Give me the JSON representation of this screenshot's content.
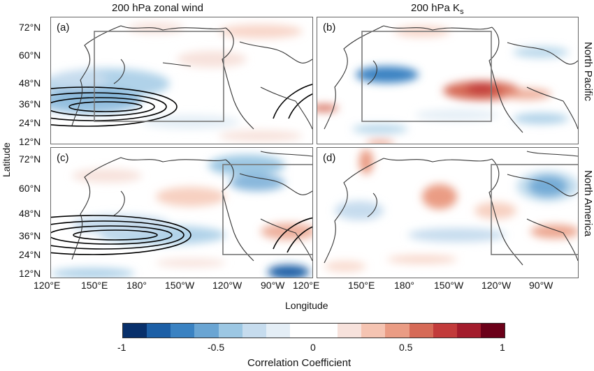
{
  "titles": {
    "left": "200 hPa zonal wind",
    "right_main": "200 hPa K",
    "right_sub": "s"
  },
  "ylabel": "Latitude",
  "xlabel": "Longitude",
  "row_labels": {
    "top": "North Pacific",
    "bottom": "North America"
  },
  "panel_labels": [
    "(a)",
    "(b)",
    "(c)",
    "(d)"
  ],
  "lat_ticks": [
    "72°N",
    "60°N",
    "48°N",
    "36°N",
    "24°N",
    "12°N"
  ],
  "lon_ticks": [
    "120°E",
    "150°E",
    "180°",
    "150°W",
    "120°W",
    "90°W"
  ],
  "colorbar": {
    "title": "Correlation Coefficient",
    "ticks": [
      "-1",
      "-0.5",
      "0",
      "0.5",
      "1"
    ],
    "colors": [
      "#08306b",
      "#1c5fa6",
      "#3a82c2",
      "#6aa5d3",
      "#9cc7e3",
      "#c6dcee",
      "#e4eef6",
      "#ffffff",
      "#ffffff",
      "#f7e2dc",
      "#f5c4b2",
      "#ea9c84",
      "#d66a57",
      "#c23b3b",
      "#a31c2c",
      "#6b0019"
    ]
  }
}
